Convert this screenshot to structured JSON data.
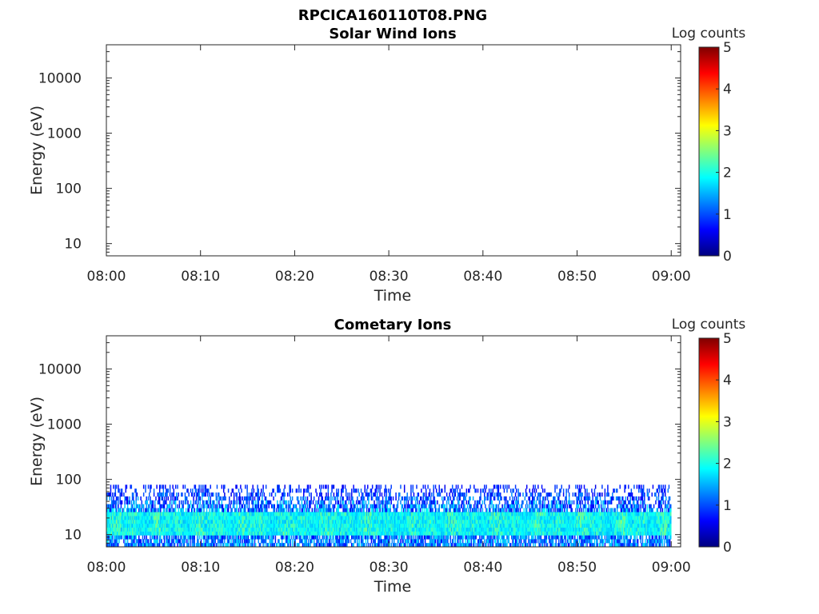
{
  "figure_title": "RPCICA160110T08.PNG",
  "colorscale": [
    "#00007f",
    "#0000ff",
    "#007fff",
    "#00ffff",
    "#7fff7f",
    "#ffff00",
    "#ff7f00",
    "#ff0000",
    "#7f0000"
  ],
  "chart_data": [
    {
      "type": "heatmap",
      "title": "Solar Wind Ions",
      "xlabel": "Time",
      "ylabel": "Energy (eV)",
      "x_ticks": [
        "08:00",
        "08:10",
        "08:20",
        "08:30",
        "08:40",
        "08:50",
        "09:00"
      ],
      "xlim": [
        "08:00",
        "09:01"
      ],
      "y_scale": "log",
      "y_ticks": [
        "10",
        "100",
        "1000",
        "10000"
      ],
      "ylim": [
        6,
        40000
      ],
      "colorbar": {
        "label": "Log counts",
        "range": [
          0,
          5
        ],
        "ticks": [
          "0",
          "1",
          "2",
          "3",
          "4",
          "5"
        ]
      },
      "data": []
    },
    {
      "type": "heatmap",
      "title": "Cometary Ions",
      "xlabel": "Time",
      "ylabel": "Energy (eV)",
      "x_ticks": [
        "08:00",
        "08:10",
        "08:20",
        "08:30",
        "08:40",
        "08:50",
        "09:00"
      ],
      "xlim": [
        "08:00",
        "09:01"
      ],
      "y_scale": "log",
      "y_ticks": [
        "10",
        "100",
        "1000",
        "10000"
      ],
      "ylim": [
        6,
        40000
      ],
      "colorbar": {
        "label": "Log counts",
        "range": [
          0,
          5
        ],
        "ticks": [
          "0",
          "1",
          "2",
          "3",
          "4",
          "5"
        ]
      },
      "signal": {
        "energy_range_eV": [
          6,
          80
        ],
        "time_range": [
          "08:00",
          "09:00"
        ],
        "peak_energy_eV": [
          10,
          25
        ],
        "typical_log_counts": [
          1,
          2.5
        ]
      }
    }
  ]
}
